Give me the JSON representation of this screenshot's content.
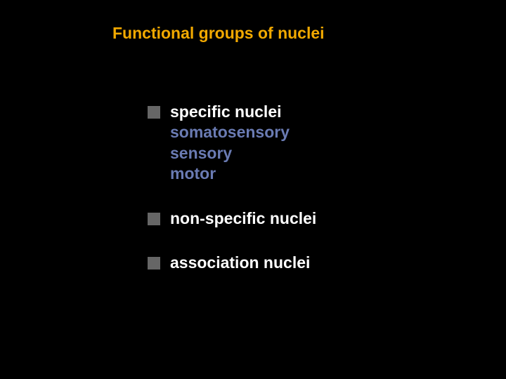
{
  "title": {
    "text": "Functional groups of nuclei",
    "color": "#f2a900",
    "fontsize": 23,
    "fontweight": "bold"
  },
  "bullet": {
    "color": "#666666",
    "size": 18
  },
  "groups": [
    {
      "label": "specific nuclei",
      "label_color": "#ffffff",
      "subs": [
        {
          "text": "somatosensory",
          "color": "#6a7bb3"
        },
        {
          "text": "sensory",
          "color": "#6a7bb3"
        },
        {
          "text": "motor",
          "color": "#6a7bb3"
        }
      ]
    },
    {
      "label": "non-specific nuclei",
      "label_color": "#ffffff",
      "subs": []
    },
    {
      "label": "association nuclei",
      "label_color": "#ffffff",
      "subs": []
    }
  ],
  "background_color": "#000000",
  "body_fontsize": 23
}
